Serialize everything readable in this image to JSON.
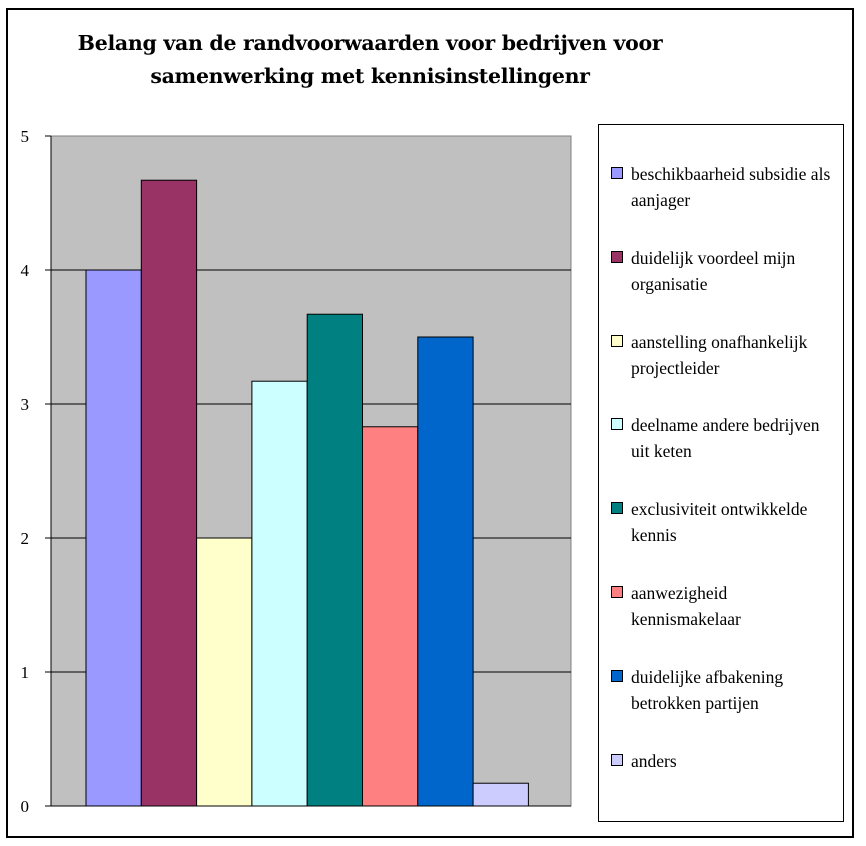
{
  "chart_data": {
    "type": "bar",
    "title": "Belang van de randvoorwaarden voor bedrijven voor samenwerking met kennisinstellingenr",
    "xlabel": "",
    "ylabel": "",
    "ylim": [
      0,
      5
    ],
    "yticks": [
      "0",
      "1",
      "2",
      "3",
      "4",
      "5"
    ],
    "grid": true,
    "legend_position": "right",
    "plot_background": "#c0c0c0",
    "series": [
      {
        "name": "beschikbaarheid subsidie als aanjager",
        "value": 4.0,
        "color": "#9999ff"
      },
      {
        "name": "duidelijk voordeel mijn organisatie",
        "value": 4.67,
        "color": "#993366"
      },
      {
        "name": "aanstelling onafhankelijk projectleider",
        "value": 2.0,
        "color": "#ffffcc"
      },
      {
        "name": "deelname andere bedrijven uit keten",
        "value": 3.17,
        "color": "#ccffff"
      },
      {
        "name": "exclusiviteit ontwikkelde kennis",
        "value": 3.67,
        "color": "#008080"
      },
      {
        "name": "aanwezigheid kennismakelaar",
        "value": 2.83,
        "color": "#ff8080"
      },
      {
        "name": "duidelijke afbakening betrokken partijen",
        "value": 3.5,
        "color": "#0066cc"
      },
      {
        "name": "anders",
        "value": 0.17,
        "color": "#ccccff"
      }
    ]
  }
}
